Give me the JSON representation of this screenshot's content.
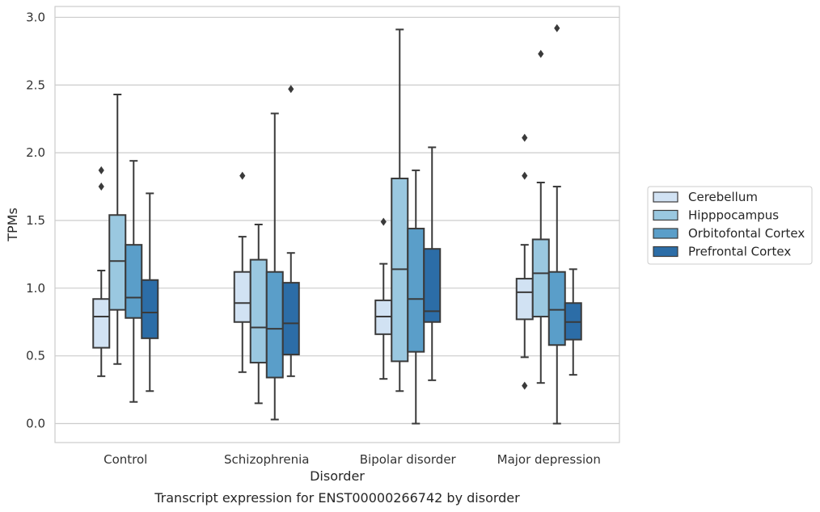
{
  "chart_data": {
    "type": "box",
    "caption": "Transcript expression for ENST00000266742 by disorder",
    "xlabel": "Disorder",
    "ylabel": "TPMs",
    "ylim": [
      -0.14,
      3.08
    ],
    "yticks": [
      "0.0",
      "0.5",
      "1.0",
      "1.5",
      "2.0",
      "2.5",
      "3.0"
    ],
    "grid": true,
    "legend_position": "right",
    "categories": [
      "Control",
      "Schizophrenia",
      "Bipolar disorder",
      "Major depression"
    ],
    "series": [
      {
        "name": "Cerebellum",
        "color": "#d1e2f3",
        "boxes": [
          {
            "whislo": 0.35,
            "q1": 0.56,
            "med": 0.79,
            "q3": 0.92,
            "whishi": 1.13,
            "fliers": [
              1.75,
              1.87
            ]
          },
          {
            "whislo": 0.38,
            "q1": 0.75,
            "med": 0.89,
            "q3": 1.12,
            "whishi": 1.38,
            "fliers": [
              1.83
            ]
          },
          {
            "whislo": 0.33,
            "q1": 0.66,
            "med": 0.79,
            "q3": 0.91,
            "whishi": 1.18,
            "fliers": [
              1.49
            ]
          },
          {
            "whislo": 0.49,
            "q1": 0.77,
            "med": 0.97,
            "q3": 1.07,
            "whishi": 1.32,
            "fliers": [
              0.28,
              1.83,
              2.11
            ]
          }
        ]
      },
      {
        "name": "Hipppocampus",
        "color": "#9ac8e0",
        "boxes": [
          {
            "whislo": 0.44,
            "q1": 0.84,
            "med": 1.2,
            "q3": 1.54,
            "whishi": 2.43,
            "fliers": []
          },
          {
            "whislo": 0.15,
            "q1": 0.45,
            "med": 0.71,
            "q3": 1.21,
            "whishi": 1.47,
            "fliers": []
          },
          {
            "whislo": 0.24,
            "q1": 0.46,
            "med": 1.14,
            "q3": 1.81,
            "whishi": 2.91,
            "fliers": []
          },
          {
            "whislo": 0.3,
            "q1": 0.79,
            "med": 1.11,
            "q3": 1.36,
            "whishi": 1.78,
            "fliers": [
              2.73
            ]
          }
        ]
      },
      {
        "name": "Orbitofontal Cortex",
        "color": "#5a9ec9",
        "boxes": [
          {
            "whislo": 0.16,
            "q1": 0.78,
            "med": 0.93,
            "q3": 1.32,
            "whishi": 1.94,
            "fliers": []
          },
          {
            "whislo": 0.03,
            "q1": 0.34,
            "med": 0.7,
            "q3": 1.12,
            "whishi": 2.29,
            "fliers": []
          },
          {
            "whislo": 0.0,
            "q1": 0.53,
            "med": 0.92,
            "q3": 1.44,
            "whishi": 1.87,
            "fliers": []
          },
          {
            "whislo": 0.0,
            "q1": 0.58,
            "med": 0.84,
            "q3": 1.12,
            "whishi": 1.75,
            "fliers": [
              2.92
            ]
          }
        ]
      },
      {
        "name": "Prefrontal Cortex",
        "color": "#2c6da7",
        "boxes": [
          {
            "whislo": 0.24,
            "q1": 0.63,
            "med": 0.82,
            "q3": 1.06,
            "whishi": 1.7,
            "fliers": []
          },
          {
            "whislo": 0.35,
            "q1": 0.51,
            "med": 0.74,
            "q3": 1.04,
            "whishi": 1.26,
            "fliers": [
              2.47
            ]
          },
          {
            "whislo": 0.32,
            "q1": 0.75,
            "med": 0.83,
            "q3": 1.29,
            "whishi": 2.04,
            "fliers": []
          },
          {
            "whislo": 0.36,
            "q1": 0.62,
            "med": 0.75,
            "q3": 0.89,
            "whishi": 1.14,
            "fliers": []
          }
        ]
      }
    ]
  }
}
